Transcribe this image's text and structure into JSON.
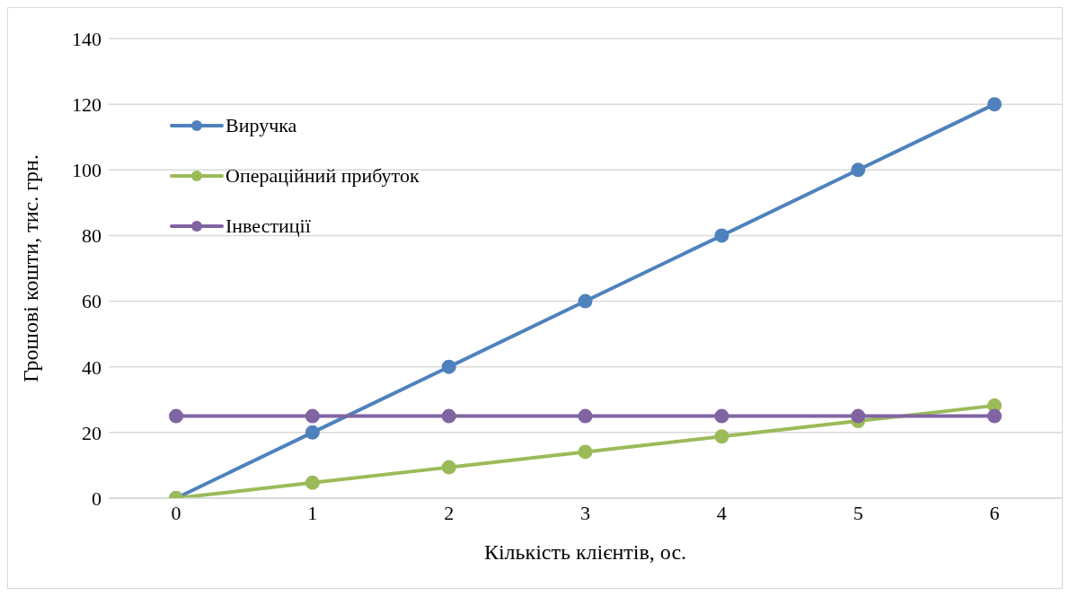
{
  "chart_data": {
    "type": "line",
    "xlabel": "Кількість клієнтів, ос.",
    "ylabel": "Грошові кошти, тис. грн.",
    "categories": [
      "0",
      "1",
      "2",
      "3",
      "4",
      "5",
      "6"
    ],
    "series": [
      {
        "name": "Виручка",
        "color": "#4f81bd",
        "values": [
          0,
          20,
          40,
          60,
          80,
          100,
          120
        ]
      },
      {
        "name": "Операційний прибуток",
        "color": "#9bbb59",
        "values": [
          0,
          4.7,
          9.4,
          14.1,
          18.8,
          23.5,
          28.2
        ]
      },
      {
        "name": "Інвестиції",
        "color": "#8064a2",
        "values": [
          25,
          25,
          25,
          25,
          25,
          25,
          25
        ]
      }
    ],
    "ylim": [
      0,
      140
    ],
    "yticks": [
      0,
      20,
      40,
      60,
      80,
      100,
      120,
      140
    ],
    "grid": "y",
    "legend": "top left",
    "marker": "circle",
    "line_style": "solid"
  }
}
